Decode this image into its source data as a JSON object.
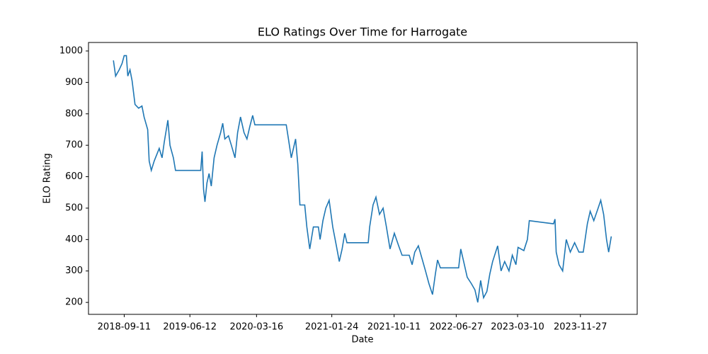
{
  "chart_data": {
    "type": "line",
    "title": "ELO Ratings Over Time for Harrogate",
    "x_label": "Date",
    "y_label": "ELO Rating",
    "color": "#1f77b4",
    "x": [
      "2018-07-28",
      "2018-08-06",
      "2018-08-21",
      "2018-09-02",
      "2018-09-11",
      "2018-09-20",
      "2018-09-26",
      "2018-10-05",
      "2018-10-14",
      "2018-10-26",
      "2018-11-10",
      "2018-11-24",
      "2018-12-03",
      "2018-12-18",
      "2018-12-24",
      "2019-01-02",
      "2019-01-14",
      "2019-02-04",
      "2019-02-16",
      "2019-02-25",
      "2019-03-12",
      "2019-03-21",
      "2019-04-04",
      "2019-04-13",
      "2019-07-27",
      "2019-08-02",
      "2019-08-08",
      "2019-08-14",
      "2019-08-22",
      "2019-08-31",
      "2019-09-09",
      "2019-09-21",
      "2019-10-03",
      "2019-10-18",
      "2019-10-27",
      "2019-11-05",
      "2019-11-20",
      "2019-12-02",
      "2019-12-17",
      "2019-12-28",
      "2020-01-09",
      "2020-01-24",
      "2020-02-05",
      "2020-02-17",
      "2020-02-29",
      "2020-03-09",
      "2020-07-18",
      "2020-07-27",
      "2020-08-08",
      "2020-08-26",
      "2020-09-04",
      "2020-09-13",
      "2020-10-03",
      "2020-10-12",
      "2020-10-24",
      "2020-11-08",
      "2020-11-29",
      "2020-12-06",
      "2020-12-18",
      "2020-12-30",
      "2021-01-13",
      "2021-01-28",
      "2021-02-12",
      "2021-02-24",
      "2021-03-08",
      "2021-03-19",
      "2021-03-28",
      "2021-06-25",
      "2021-07-01",
      "2021-07-15",
      "2021-07-27",
      "2021-08-11",
      "2021-08-26",
      "2021-09-09",
      "2021-09-24",
      "2021-10-12",
      "2021-10-30",
      "2021-11-13",
      "2021-12-13",
      "2021-12-25",
      "2022-01-05",
      "2022-01-20",
      "2022-02-04",
      "2022-02-19",
      "2022-03-05",
      "2022-03-20",
      "2022-04-01",
      "2022-04-10",
      "2022-04-22",
      "2022-07-07",
      "2022-07-16",
      "2022-07-28",
      "2022-08-12",
      "2022-08-29",
      "2022-09-13",
      "2022-09-25",
      "2022-10-07",
      "2022-10-19",
      "2022-11-02",
      "2022-11-14",
      "2022-11-26",
      "2022-12-17",
      "2022-12-31",
      "2023-01-15",
      "2023-02-02",
      "2023-02-16",
      "2023-03-03",
      "2023-03-12",
      "2023-04-05",
      "2023-04-20",
      "2023-04-28",
      "2023-08-07",
      "2023-08-13",
      "2023-08-18",
      "2023-08-30",
      "2023-09-14",
      "2023-09-29",
      "2023-10-16",
      "2023-11-03",
      "2023-11-21",
      "2023-12-09",
      "2023-12-26",
      "2024-01-07",
      "2024-01-22",
      "2024-02-09",
      "2024-02-20",
      "2024-03-03",
      "2024-03-15",
      "2024-03-24",
      "2024-04-04"
    ],
    "values": [
      970,
      920,
      940,
      960,
      985,
      985,
      920,
      940,
      905,
      830,
      818,
      825,
      790,
      750,
      650,
      620,
      650,
      690,
      660,
      710,
      780,
      700,
      660,
      620,
      620,
      680,
      560,
      520,
      580,
      610,
      570,
      660,
      700,
      740,
      770,
      720,
      730,
      700,
      660,
      740,
      790,
      740,
      720,
      760,
      795,
      765,
      765,
      720,
      660,
      720,
      640,
      510,
      510,
      440,
      370,
      440,
      440,
      400,
      460,
      500,
      525,
      440,
      380,
      330,
      370,
      420,
      390,
      390,
      440,
      510,
      535,
      480,
      500,
      440,
      370,
      420,
      380,
      350,
      350,
      320,
      360,
      380,
      340,
      300,
      260,
      225,
      290,
      335,
      310,
      310,
      370,
      330,
      280,
      260,
      240,
      200,
      270,
      215,
      235,
      290,
      330,
      380,
      300,
      330,
      300,
      350,
      320,
      375,
      365,
      400,
      460,
      450,
      465,
      360,
      320,
      300,
      400,
      360,
      390,
      360,
      360,
      450,
      490,
      460,
      500,
      525,
      480,
      400,
      360,
      410
    ],
    "xlim": [
      "2018-04-15",
      "2024-07-21"
    ],
    "xticks": [
      "2018-09-11",
      "2019-06-12",
      "2020-03-16",
      "2021-01-24",
      "2021-10-11",
      "2022-06-27",
      "2023-03-10",
      "2023-11-27"
    ],
    "ylim": [
      162,
      1027
    ],
    "yticks": [
      200,
      300,
      400,
      500,
      600,
      700,
      800,
      900,
      1000
    ]
  }
}
